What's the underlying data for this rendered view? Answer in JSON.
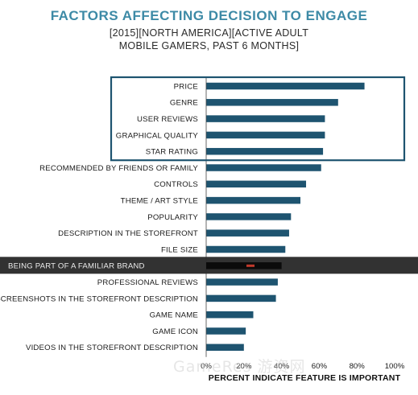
{
  "chart_data": {
    "type": "bar",
    "orientation": "horizontal",
    "title": "FACTORS AFFECTING DECISION TO ENGAGE",
    "subtitle_line1": "[2015][NORTH AMERICA][ACTIVE ADULT",
    "subtitle_line2": "MOBILE GAMERS, PAST 6 MONTHS]",
    "xlabel": "PERCENT INDICATE FEATURE IS IMPORTANT",
    "xlim": [
      0,
      100
    ],
    "xticks": [
      "0%",
      "20%",
      "40%",
      "60%",
      "80%",
      "100%"
    ],
    "categories": [
      "PRICE",
      "GENRE",
      "USER REVIEWS",
      "GRAPHICAL QUALITY",
      "STAR RATING",
      "RECOMMENDED BY FRIENDS OR FAMILY",
      "CONTROLS",
      "THEME / ART STYLE",
      "POPULARITY",
      "DESCRIPTION IN THE STOREFRONT",
      "FILE SIZE",
      "BEING PART OF A FAMILIAR BRAND",
      "PROFESSIONAL REVIEWS",
      "SCREENSHOTS IN THE STOREFRONT DESCRIPTION",
      "GAME NAME",
      "GAME ICON",
      "VIDEOS IN THE STOREFRONT DESCRIPTION"
    ],
    "values": [
      84,
      70,
      63,
      63,
      62,
      61,
      53,
      50,
      45,
      44,
      42,
      40,
      38,
      37,
      25,
      21,
      20
    ],
    "highlight_box_categories": [
      "PRICE",
      "GENRE",
      "USER REVIEWS",
      "GRAPHICAL QUALITY",
      "STAR RATING"
    ],
    "dark_band_category": "BEING PART OF A FAMILIAR BRAND",
    "bar_color": "#1e5470",
    "box_color": "#1e5470",
    "grid": false,
    "legend": "none"
  },
  "watermark": "GameRes 游资网"
}
